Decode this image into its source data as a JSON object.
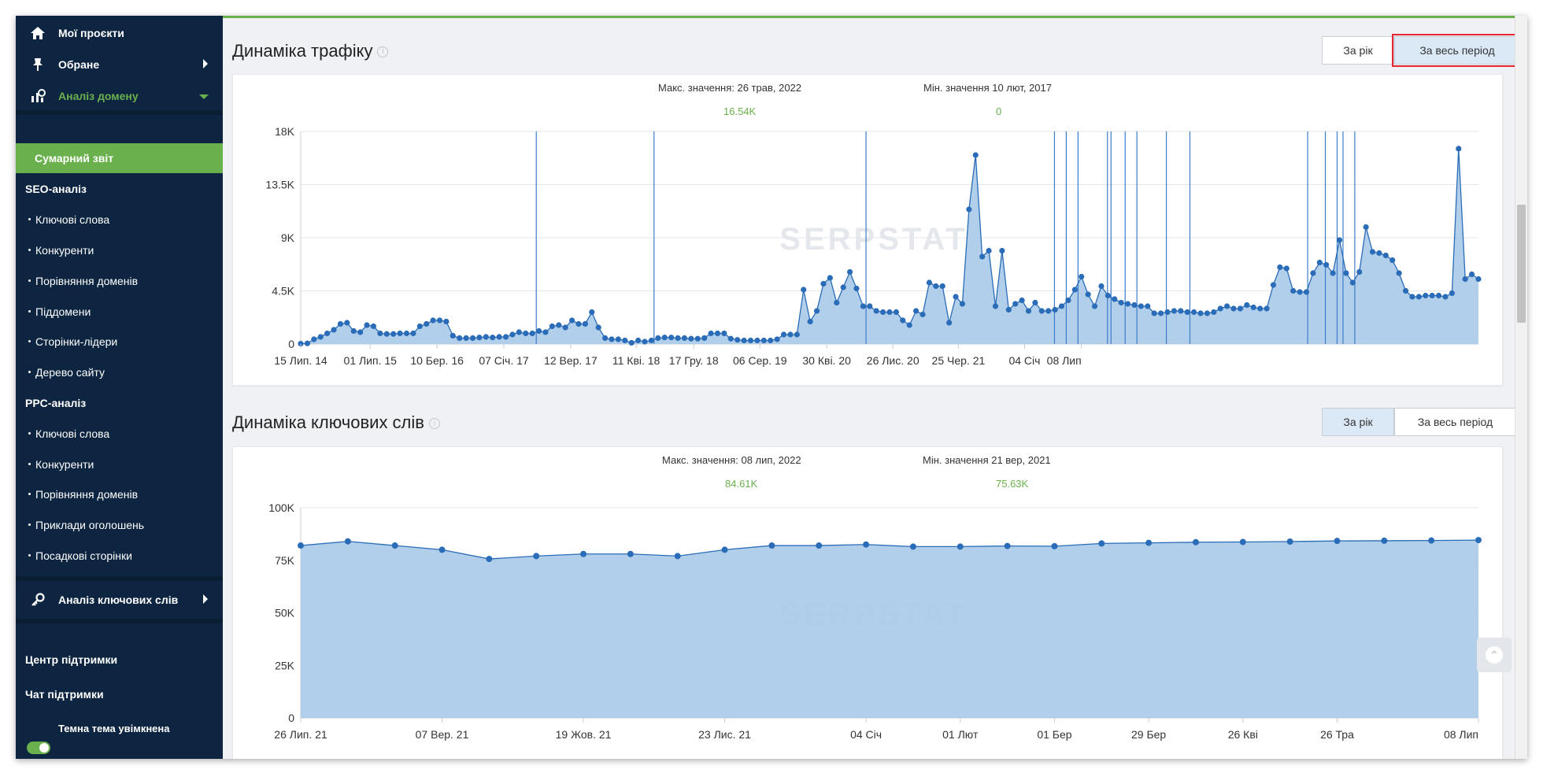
{
  "sidebar": {
    "projects": "Мої проєкти",
    "favorites": "Обране",
    "domain_analysis": "Аналіз домену",
    "summary": "Сумарний звіт",
    "seo_section": "SEO-аналіз",
    "seo_items": [
      "Ключові слова",
      "Конкуренти",
      "Порівняння доменів",
      "Піддомени",
      "Сторінки-лідери",
      "Дерево сайту"
    ],
    "ppc_section": "PPC-аналіз",
    "ppc_items": [
      "Ключові слова",
      "Конкуренти",
      "Порівняння доменів",
      "Приклади оголошень",
      "Посадкові сторінки"
    ],
    "keyword_analysis": "Аналіз ключових слів",
    "support_center": "Центр підтримки",
    "support_chat": "Чат підтримки",
    "dark_theme": "Темна тема увімкнена"
  },
  "traffic": {
    "title": "Динаміка трафіку",
    "btn_year": "За рік",
    "btn_all": "За весь період",
    "max_label": "Макс. значення: 26 трав, 2022",
    "max_value": "16.54K",
    "min_label": "Мін. значення 10 лют, 2017",
    "min_value": "0"
  },
  "keywords": {
    "title": "Динаміка ключових слів",
    "btn_year": "За рік",
    "btn_all": "За весь період",
    "max_label": "Макс. значення: 08 лип, 2022",
    "max_value": "84.61K",
    "min_label": "Мін. значення 21 вер, 2021",
    "min_value": "75.63K"
  },
  "watermark": "SERPSTAT",
  "colors": {
    "sidebar_bg": "#0d2540",
    "accent_green": "#6ab04c",
    "series_line": "#2a6cb7",
    "series_fill": "#a9c9e8",
    "highlight_red": "#e3262f"
  },
  "chart_data": [
    {
      "type": "area",
      "title": "Динаміка трафіку",
      "yticks": [
        "0",
        "4.5K",
        "9K",
        "13.5K",
        "18K"
      ],
      "ylim": [
        0,
        18000
      ],
      "xticks": [
        "15 Лип. 14",
        "01 Лип. 15",
        "10 Бер. 16",
        "07 Січ. 17",
        "12 Вер. 17",
        "11 Кві. 18",
        "17 Гру. 18",
        "06 Сер. 19",
        "30 Кві. 20",
        "26 Лис. 20",
        "25 Чер. 21",
        "04 Січ",
        "08 Лип"
      ],
      "xtick_index": [
        0,
        10.5,
        20.6,
        30.7,
        40.8,
        50.7,
        59.4,
        69.4,
        79.5,
        89.5,
        99.4,
        109.4,
        118
      ],
      "values": [
        30,
        50,
        400,
        600,
        900,
        1200,
        1700,
        1800,
        1100,
        1000,
        1600,
        1500,
        900,
        850,
        850,
        900,
        900,
        900,
        1500,
        1700,
        2000,
        2000,
        1900,
        700,
        500,
        500,
        500,
        550,
        600,
        550,
        600,
        600,
        800,
        1000,
        900,
        900,
        1100,
        1000,
        1500,
        1600,
        1400,
        2000,
        1700,
        1700,
        2700,
        1400,
        500,
        400,
        400,
        300,
        100,
        300,
        200,
        300,
        500,
        550,
        550,
        500,
        500,
        450,
        450,
        500,
        900,
        900,
        900,
        450,
        350,
        300,
        300,
        300,
        300,
        300,
        400,
        800,
        800,
        800,
        4600,
        1900,
        2800,
        5100,
        5600,
        3500,
        4800,
        6100,
        4700,
        3200,
        3200,
        2800,
        2700,
        2700,
        2700,
        2000,
        1600,
        2800,
        2500,
        5200,
        4900,
        4900,
        1800,
        4000,
        3400,
        11400,
        16000,
        7400,
        7900,
        3200,
        7900,
        2900,
        3400,
        3700,
        2800,
        3500,
        2800,
        2800,
        2900,
        3200,
        3700,
        4600,
        5700,
        4200,
        3200,
        4900,
        4100,
        3800,
        3500,
        3400,
        3300,
        3200,
        3200,
        2600,
        2600,
        2700,
        2800,
        2800,
        2700,
        2700,
        2600,
        2600,
        2700,
        3000,
        3200,
        3000,
        3000,
        3300,
        3100,
        3000,
        3000,
        5000,
        6500,
        6400,
        4500,
        4400,
        4400,
        6000,
        6900,
        6700,
        6000,
        8800,
        6000,
        5200,
        6100,
        9900,
        7800,
        7700,
        7500,
        7100,
        6000,
        4500,
        4000,
        4000,
        4100,
        4100,
        4100,
        4000,
        4300,
        16540,
        5500,
        5900,
        5500
      ],
      "vertical_markers": [
        0.2,
        0.3,
        0.48,
        0.64,
        0.65,
        0.66,
        0.685,
        0.688,
        0.7,
        0.71,
        0.735,
        0.755,
        0.855,
        0.87,
        0.88,
        0.885,
        0.895
      ]
    },
    {
      "type": "area",
      "title": "Динаміка ключових слів",
      "yticks": [
        "0",
        "25K",
        "50K",
        "75K",
        "100K"
      ],
      "ylim": [
        0,
        100000
      ],
      "xticks": [
        "26 Лип. 21",
        "07 Вер. 21",
        "19 Жов. 21",
        "23 Лис. 21",
        "04 Січ",
        "01 Лют",
        "01 Бер",
        "29 Бер",
        "26 Кві",
        "26 Тра",
        "08 Лип"
      ],
      "xtick_index": [
        0,
        3,
        6,
        9,
        12,
        14,
        16,
        18,
        20,
        22,
        25
      ],
      "values": [
        82000,
        84000,
        82000,
        80000,
        75630,
        77000,
        78000,
        78000,
        77000,
        80000,
        82000,
        82000,
        82500,
        81500,
        81500,
        81800,
        81700,
        83000,
        83300,
        83600,
        83700,
        83900,
        84200,
        84300,
        84400,
        84610
      ]
    }
  ]
}
